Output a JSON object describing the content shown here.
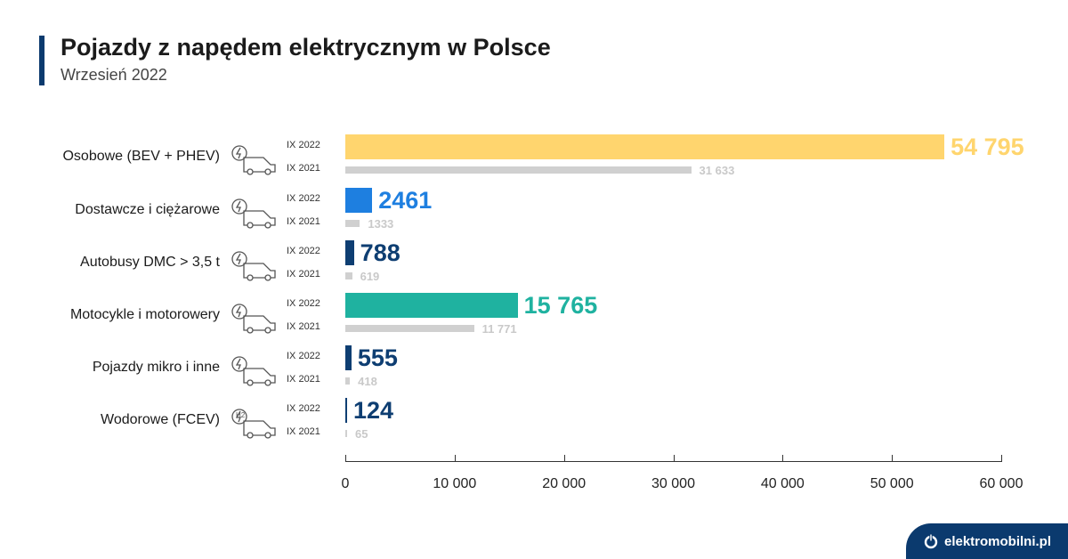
{
  "header": {
    "title": "Pojazdy z napędem elektrycznym w Polsce",
    "subtitle": "Wrzesień 2022"
  },
  "brand": {
    "label": "elektromobilni.pl"
  },
  "chart_data": {
    "type": "bar",
    "orientation": "horizontal",
    "title": "Pojazdy z napędem elektrycznym w Polsce",
    "categories": [
      "Osobowe (BEV + PHEV)",
      "Dostawcze i ciężarowe",
      "Autobusy DMC > 3,5 t",
      "Motocykle i motorowery",
      "Pojazdy mikro i inne",
      "Wodorowe (FCEV)"
    ],
    "icons": [
      "car-electric-icon",
      "truck-electric-icon",
      "bus-electric-icon",
      "motorcycle-electric-icon",
      "micro-vehicle-electric-icon",
      "car-hydrogen-icon"
    ],
    "icon_badges": [
      "",
      "",
      "",
      "",
      "",
      "H2"
    ],
    "series": [
      {
        "name": "IX 2022",
        "values": [
          54795,
          2461,
          788,
          15765,
          555,
          124
        ],
        "labels": [
          "54 795",
          "2461",
          "788",
          "15 765",
          "555",
          "124"
        ],
        "colors": [
          "#FFD56E",
          "#1E7FE0",
          "#0E3E72",
          "#1FB2A0",
          "#0E3E72",
          "#0E3E72"
        ]
      },
      {
        "name": "IX 2021",
        "values": [
          31633,
          1333,
          619,
          11771,
          418,
          65
        ],
        "labels": [
          "31 633",
          "1333",
          "619",
          "11 771",
          "418",
          "65"
        ],
        "color": "#D0D0D0"
      }
    ],
    "xlim": [
      0,
      60000
    ],
    "xticks": [
      0,
      10000,
      20000,
      30000,
      40000,
      50000,
      60000
    ],
    "xtick_labels": [
      "0",
      "10 000",
      "20 000",
      "30 000",
      "40 000",
      "50 000",
      "60 000"
    ],
    "grid": false
  }
}
